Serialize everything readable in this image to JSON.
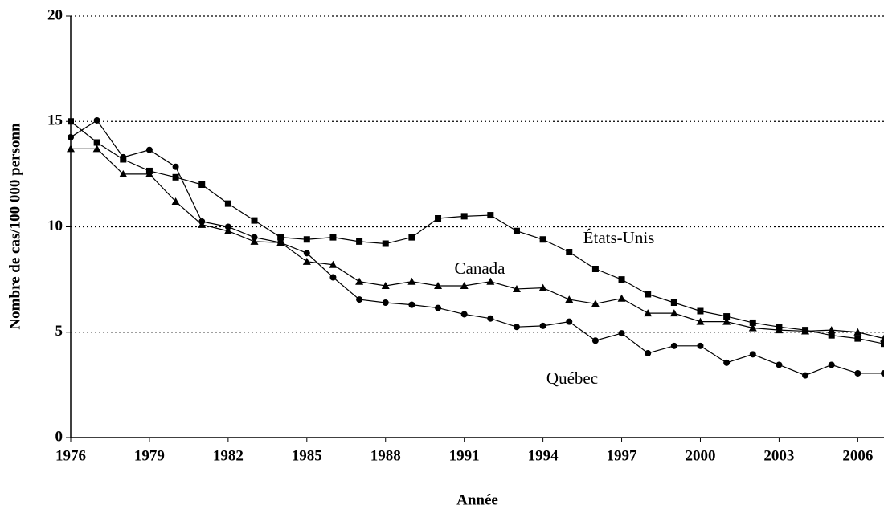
{
  "chart_data": {
    "type": "line",
    "xlabel": "Année",
    "ylabel": "Nombre de cas/100 000 personn",
    "x": [
      1976,
      1977,
      1978,
      1979,
      1980,
      1981,
      1982,
      1983,
      1984,
      1985,
      1986,
      1987,
      1988,
      1989,
      1990,
      1991,
      1992,
      1993,
      1994,
      1995,
      1996,
      1997,
      1998,
      1999,
      2000,
      2001,
      2002,
      2003,
      2004,
      2005,
      2006,
      2007
    ],
    "series": [
      {
        "name": "États-Unis",
        "color": "#000000",
        "marker": "square",
        "values": [
          15.0,
          14.0,
          13.2,
          12.65,
          12.35,
          12.0,
          11.1,
          10.3,
          9.5,
          9.4,
          9.5,
          9.3,
          9.2,
          9.5,
          10.4,
          10.5,
          10.55,
          9.8,
          9.4,
          8.8,
          8.0,
          7.5,
          6.8,
          6.4,
          6.0,
          5.75,
          5.45,
          5.25,
          5.1,
          4.85,
          4.7,
          4.45
        ]
      },
      {
        "name": "Canada",
        "color": "#000000",
        "marker": "triangle",
        "values": [
          13.7,
          13.7,
          12.5,
          12.5,
          11.2,
          10.1,
          9.8,
          9.3,
          9.25,
          8.35,
          8.2,
          7.4,
          7.2,
          7.4,
          7.2,
          7.2,
          7.4,
          7.05,
          7.1,
          6.55,
          6.35,
          6.6,
          5.9,
          5.9,
          5.5,
          5.5,
          5.2,
          5.1,
          5.05,
          5.1,
          5.0,
          4.7
        ]
      },
      {
        "name": "Québec",
        "color": "#000000",
        "marker": "circle",
        "values": [
          14.25,
          15.05,
          13.3,
          13.65,
          12.85,
          10.25,
          10.0,
          9.5,
          9.25,
          8.75,
          7.6,
          6.55,
          6.4,
          6.3,
          6.15,
          5.85,
          5.65,
          5.25,
          5.3,
          5.5,
          4.6,
          4.95,
          4.0,
          4.35,
          4.35,
          3.55,
          3.95,
          3.45,
          2.95,
          3.45,
          3.05,
          3.05
        ]
      }
    ],
    "xlim": [
      1976,
      2007
    ],
    "xticks": [
      1976,
      1979,
      1982,
      1985,
      1988,
      1991,
      1994,
      1997,
      2000,
      2003,
      2006
    ],
    "ylim": [
      0,
      20
    ],
    "yticks": [
      0,
      5,
      10,
      15,
      20
    ],
    "grid": true,
    "grid_style": "dotted"
  }
}
